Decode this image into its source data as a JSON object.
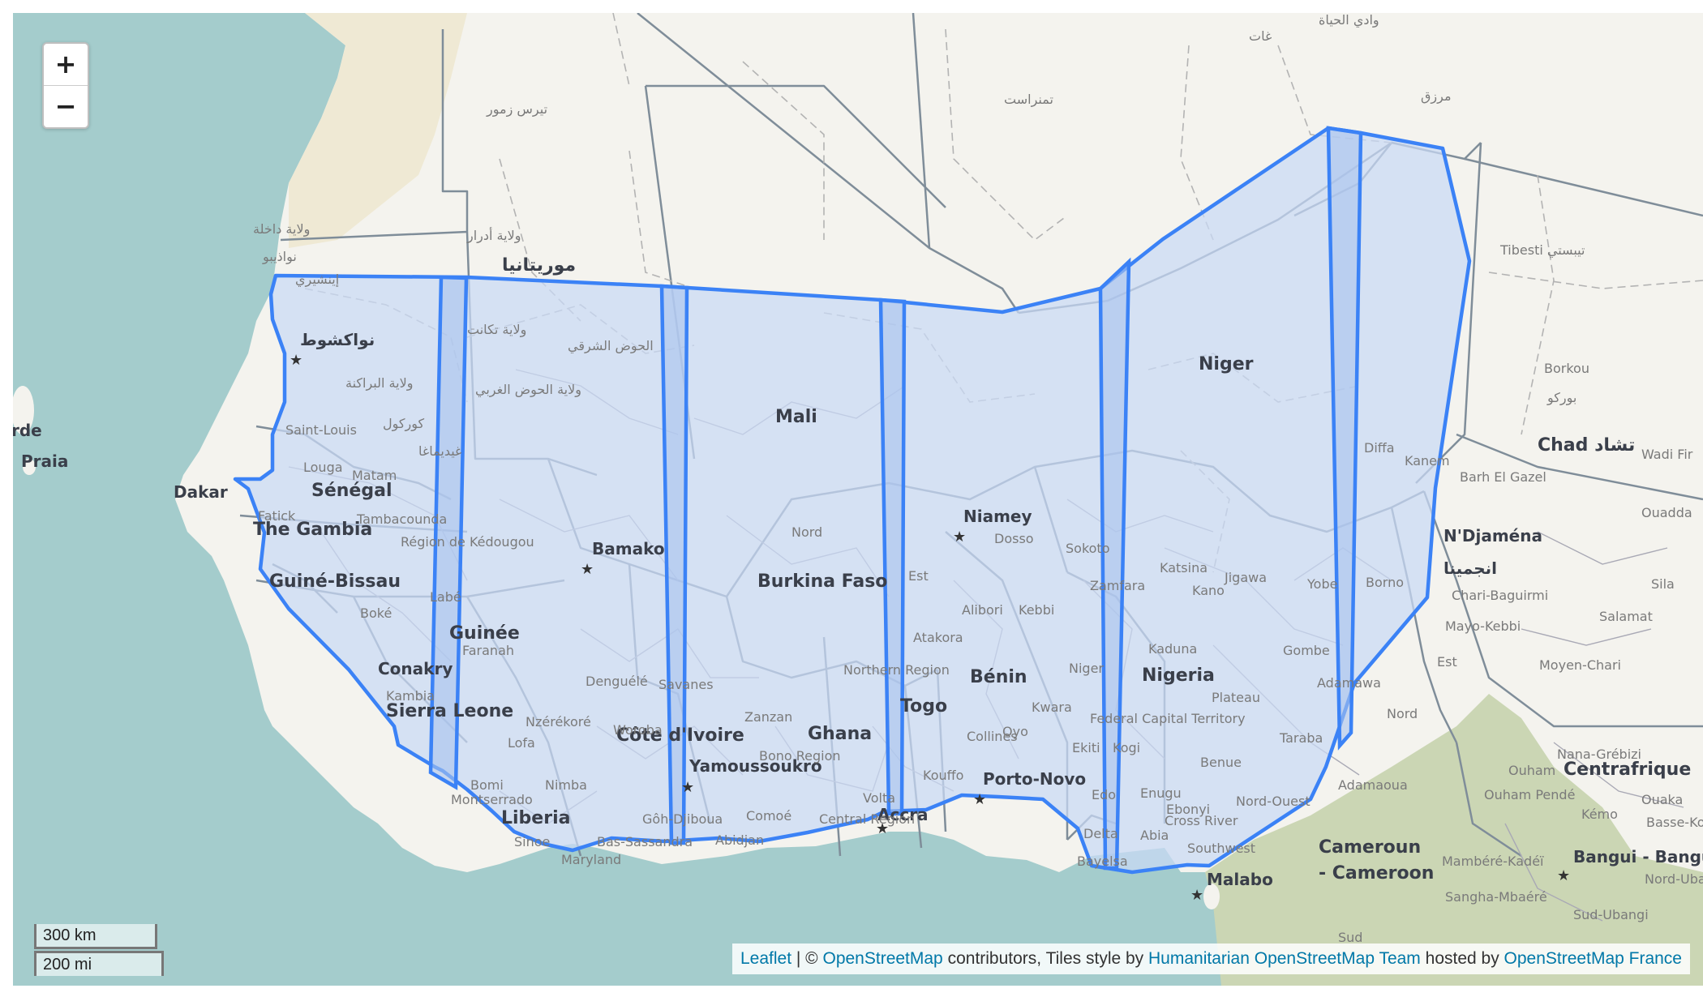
{
  "map": {
    "labels": {
      "mauritania": "موريتانيا",
      "nouakchott": "نواكشوط",
      "mali": "Mali",
      "niger": "Niger",
      "niamey": "Niamey",
      "senegal": "Sénégal",
      "dakar": "Dakar",
      "gambia": "The Gambia",
      "guinea_bissau": "Guiné-Bissau",
      "guinee": "Guinée",
      "conakry": "Conakry",
      "sierra_leone": "Sierra Leone",
      "liberia": "Liberia",
      "cote_divoire": "Côte d'Ivoire",
      "yamoussoukro": "Yamoussoukro",
      "bamako": "Bamako",
      "burkina_faso": "Burkina Faso",
      "ghana": "Ghana",
      "accra": "Accra",
      "togo": "Togo",
      "benin": "Bénin",
      "porto_novo": "Porto-Novo",
      "nigeria": "Nigeria",
      "chad": "Chad تشاد",
      "ndjamena": "N'Djaména",
      "ndjamena_ar": "انجمينا",
      "cameroun": "Cameroun",
      "cameroon": "- Cameroon",
      "malabo": "Malabo",
      "centrafrique": "Centrafrique",
      "bangui": "Bangui - Bangui",
      "cabo_verde": "rde",
      "praia": "Praia",
      "tamanrasset": "تمنراست",
      "tiris_zemmour": "تيرس زمور",
      "adrar": "ولاية أدرار",
      "dakhla": "ولاية داخلة",
      "hodh_chargui": "الحوض الشرقي",
      "hodh_gharbi": "ولاية الحوض الغربي",
      "tagant": "ولاية تكانت",
      "trarza": "ولاية البراكنة",
      "murzuq": "مرزق",
      "ghat": "غات",
      "wadi_hayat": "وادي الحياة",
      "tibesti": "Tibesti تيبستي",
      "borkou": "Borkou",
      "borkou_ar": "بوركو",
      "kanem": "Kanem",
      "bahr_el_gazel": "Barh El Gazel",
      "wadi_fira": "Wadi Fir",
      "ouaddai": "Ouadda",
      "salamat": "Salamat",
      "sila": "Sila",
      "moyen_chari": "Moyen-Chari",
      "mayo_kebbi": "Mayo-Kebbi",
      "chari_baguirmi": "Chari-Baguirmi",
      "nana_grebizi": "Nana-Grébizi",
      "ouham": "Ouham",
      "ouham_pende": "Ouham Pendé",
      "kemo": "Kémo",
      "ouaka": "Ouaka",
      "mambere_kadei": "Mambéré-Kadéï",
      "sangha_mbaere": "Sangha-Mbaéré",
      "sud_ubangi": "Sud-Ubangi",
      "nord_ubangi": "Nord-Ubangi",
      "basse_kotto": "Basse-Kotto",
      "adamaoua": "Adamaoua",
      "nord_ouest": "Nord-Ouest",
      "nord": "Nord",
      "sud": "Sud",
      "est_cameroun": "Est",
      "diffa": "Diffa",
      "dosso": "Dosso",
      "sokoto": "Sokoto",
      "zamfara": "Zamfara",
      "katsina": "Katsina",
      "jigawa": "Jigawa",
      "kano": "Kano",
      "yobe": "Yobe",
      "borno": "Borno",
      "kebbi": "Kebbi",
      "alibori": "Alibori",
      "atakora": "Atakora",
      "kaduna": "Kaduna",
      "gombe": "Gombe",
      "adamawa": "Adamawa",
      "plateau": "Plateau",
      "federal": "Federal Capital Territory",
      "niger_state": "Niger",
      "kwara": "Kwara",
      "oyo": "Oyo",
      "kogi": "Kogi",
      "ekiti": "Ekiti",
      "benue": "Benue",
      "taraba": "Taraba",
      "enugu": "Enugu",
      "ebonyi": "Ebonyi",
      "cross_river": "Cross River",
      "abia": "Abia",
      "collines": "Collines",
      "kouffo": "Kouffo",
      "edo": "Edo",
      "delta": "Delta",
      "bayelsa": "Bayelsa",
      "southwest": "Southwest",
      "est_bf": "Est",
      "nord_bf": "Nord",
      "northern": "Northern Region",
      "volta": "Volta",
      "central": "Central Region",
      "bono": "Bono Region",
      "zanzan": "Zanzan",
      "savanes": "Savanes",
      "woroba": "Woroba",
      "denguele": "Denguélé",
      "comoe": "Comoé",
      "goh": "Gôh-Djiboua",
      "bas_sassandra": "Bas-Sassandra",
      "abidjan": "Abidjan",
      "nimba": "Nimba",
      "montserrado": "Montserrado",
      "sinoe": "Sinoe",
      "maryland": "Maryland",
      "lofa": "Lofa",
      "bomi": "Bomi",
      "nzerekore": "Nzérékoré",
      "faranah": "Faranah",
      "labe": "Labé",
      "boke": "Boké",
      "kambia": "Kambia",
      "kedougou": "Région de Kédougou",
      "tambacounda": "Tambacounda",
      "matam": "Matam",
      "louga": "Louga",
      "saint_louis": "Saint-Louis",
      "fatick": "Fatick",
      "tagant_ar": "كوركول",
      "guidimaka": "غيديماغا",
      "nouadhibou": "نواذيبو",
      "inchiri": "إينشيري",
      "sokoto2": "Sokoto"
    }
  },
  "zoom": {
    "in_label": "+",
    "out_label": "−"
  },
  "scale": {
    "km": "300 km",
    "mi": "200 mi"
  },
  "attribution": {
    "leaflet": "Leaflet",
    "sep": " | © ",
    "osm": "OpenStreetMap",
    "text1": " contributors, Tiles style by ",
    "hot": "Humanitarian OpenStreetMap Team",
    "text2": " hosted by ",
    "osmfr": "OpenStreetMap France"
  },
  "colors": {
    "ocean": "#a4cccc",
    "land_sahara": "#f3efe4",
    "land_sahel": "#f4f3ee",
    "land_green": "#c9d4b2",
    "polygon_stroke": "#3b82f6",
    "polygon_fill": "#c9d9f5",
    "overlap_fill": "#a9c3ee"
  }
}
